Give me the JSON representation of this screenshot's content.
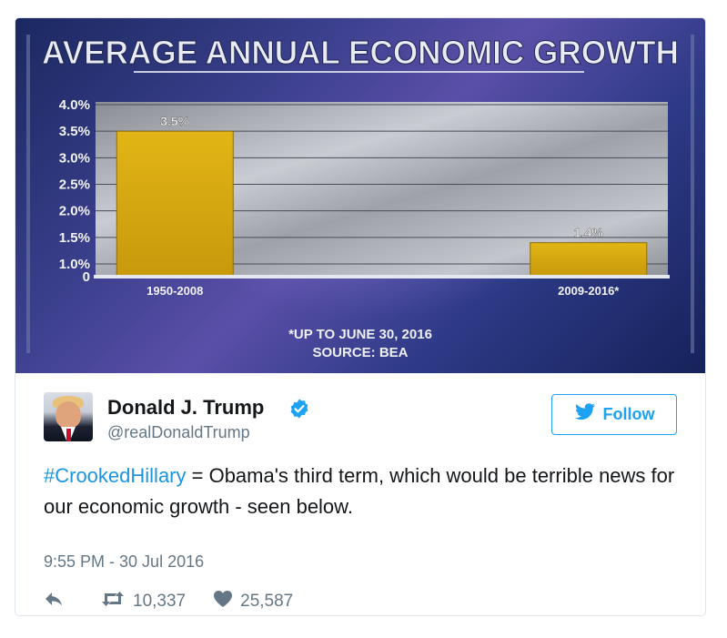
{
  "chart_data": {
    "type": "bar",
    "title": "AVERAGE ANNUAL ECONOMIC GROWTH",
    "categories": [
      "1950-2008",
      "2009-2016*"
    ],
    "values": [
      3.5,
      1.4
    ],
    "data_labels": [
      "3.5%",
      "1.4%"
    ],
    "yticks": [
      "0",
      "1.0%",
      "1.5%",
      "2.0%",
      "2.5%",
      "3.0%",
      "3.5%",
      "4.0%"
    ],
    "ylim": [
      0,
      4.0
    ],
    "grid": true,
    "footnote": "*UP TO JUNE 30, 2016",
    "source": "SOURCE: BEA",
    "bar_color": "#d4a50f"
  },
  "tweet": {
    "display_name": "Donald J. Trump",
    "handle": "@realDonaldTrump",
    "follow_label": "Follow",
    "hashtag": "#CrookedHillary",
    "body": " = Obama's third term, which would be terrible news for our economic growth - seen below.",
    "timestamp": "9:55 PM - 30 Jul 2016",
    "retweets": "10,337",
    "likes": "25,587"
  },
  "colors": {
    "twitter_blue": "#1da1f2",
    "link_blue": "#1b95e0",
    "muted_gray": "#657786",
    "verified_blue": "#1da1f2"
  },
  "icons": [
    "verified-badge-icon",
    "twitter-bird-icon",
    "reply-icon",
    "retweet-icon",
    "heart-icon"
  ]
}
